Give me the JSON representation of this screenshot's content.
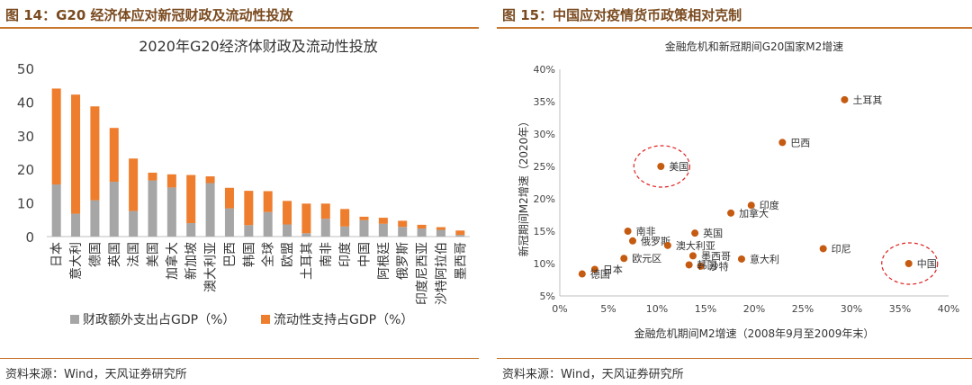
{
  "left": {
    "figure_title": "图 14：G20 经济体应对新冠财政及流动性投放",
    "source": "资料来源：Wind，天风证券研究所"
  },
  "right": {
    "figure_title": "图 15：中国应对疫情货币政策相对克制",
    "source": "资料来源：Wind，天风证券研究所"
  },
  "colors": {
    "gray": "#a6a6a6",
    "orange": "#ee7d2d",
    "point": "#c55a11",
    "circle": "#e02020"
  },
  "chart_data": [
    {
      "type": "bar",
      "stacked": true,
      "title": "2020年G20经济体财政及流动性投放",
      "ylim": [
        0,
        50
      ],
      "yticks": [
        0,
        10,
        20,
        30,
        40,
        50
      ],
      "categories": [
        "日本",
        "意大利",
        "德国",
        "英国",
        "法国",
        "美国",
        "加拿大",
        "新加坡",
        "澳大利亚",
        "巴西",
        "韩国",
        "全球",
        "欧盟",
        "土耳其",
        "南非",
        "印度",
        "中国",
        "阿根廷",
        "俄罗斯",
        "印度尼西亚",
        "沙特阿拉伯",
        "墨西哥"
      ],
      "series": [
        {
          "name": "财政额外支出占GDP（%）",
          "color": "#a6a6a6",
          "values": [
            15.5,
            6.8,
            10.8,
            16.3,
            7.6,
            16.7,
            14.6,
            4.0,
            15.9,
            8.4,
            3.4,
            7.3,
            3.6,
            1.0,
            5.3,
            3.0,
            4.9,
            3.8,
            2.9,
            2.4,
            2.0,
            0.5
          ]
        },
        {
          "name": "流动性支持占GDP（%）",
          "color": "#ee7d2d",
          "values": [
            28.5,
            35.4,
            27.9,
            16.0,
            15.6,
            2.3,
            3.9,
            14.3,
            2.0,
            6.1,
            10.2,
            6.2,
            7.0,
            8.8,
            4.5,
            5.2,
            1.0,
            1.8,
            1.8,
            1.1,
            0.8,
            1.3
          ]
        }
      ],
      "legend_position": "bottom"
    },
    {
      "type": "scatter",
      "title": "金融危机和新冠期间G20国家M2增速",
      "xlabel": "金融危机期间M2增速（2008年9月至2009年末）",
      "ylabel": "新冠期间M2增速（2020年）",
      "xlim": [
        0,
        40
      ],
      "ylim": [
        5,
        40
      ],
      "xticks": [
        "0%",
        "5%",
        "10%",
        "15%",
        "20%",
        "25%",
        "30%",
        "35%",
        "40%"
      ],
      "yticks": [
        "5%",
        "10%",
        "15%",
        "20%",
        "25%",
        "30%",
        "35%",
        "40%"
      ],
      "points": [
        {
          "label": "土耳其",
          "x": 29.3,
          "y": 35.3
        },
        {
          "label": "巴西",
          "x": 22.9,
          "y": 28.7
        },
        {
          "label": "美国",
          "x": 10.4,
          "y": 25.0,
          "highlight": true
        },
        {
          "label": "印度",
          "x": 19.7,
          "y": 19.0
        },
        {
          "label": "加拿大",
          "x": 17.6,
          "y": 17.8
        },
        {
          "label": "南非",
          "x": 7.0,
          "y": 15.0
        },
        {
          "label": "英国",
          "x": 13.9,
          "y": 14.7
        },
        {
          "label": "俄罗斯",
          "x": 7.5,
          "y": 13.5
        },
        {
          "label": "澳大利亚",
          "x": 11.1,
          "y": 12.8
        },
        {
          "label": "印尼",
          "x": 27.1,
          "y": 12.3
        },
        {
          "label": "欧元区",
          "x": 6.6,
          "y": 10.8
        },
        {
          "label": "墨西哥",
          "x": 13.7,
          "y": 11.2
        },
        {
          "label": "意大利",
          "x": 18.7,
          "y": 10.7
        },
        {
          "label": "中国",
          "x": 35.9,
          "y": 10.0,
          "highlight": true
        },
        {
          "label": "沙特",
          "x": 14.5,
          "y": 9.6
        },
        {
          "label": "韩国",
          "x": 13.3,
          "y": 9.8
        },
        {
          "label": "日本",
          "x": 3.6,
          "y": 9.1
        },
        {
          "label": "德国",
          "x": 2.3,
          "y": 8.4
        }
      ]
    }
  ]
}
